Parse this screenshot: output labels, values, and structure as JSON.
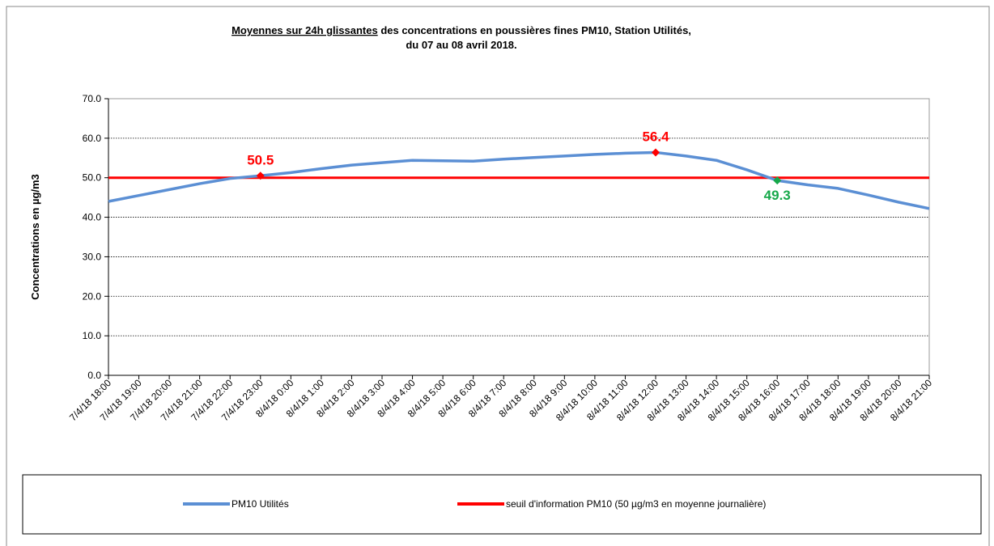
{
  "chart_data": {
    "type": "line",
    "title": {
      "underlined": "Moyennes sur 24h glissantes",
      "rest": " des concentrations en poussières fines PM10, Station Utilités,",
      "line2": "du 07 au 08 avril 2018."
    },
    "y_label": "Concentrations en µg/m3",
    "categories": [
      "7/4/18 18:00",
      "7/4/18 19:00",
      "7/4/18 20:00",
      "7/4/18 21:00",
      "7/4/18 22:00",
      "7/4/18 23:00",
      "8/4/18 0:00",
      "8/4/18 1:00",
      "8/4/18 2:00",
      "8/4/18 3:00",
      "8/4/18 4:00",
      "8/4/18 5:00",
      "8/4/18 6:00",
      "8/4/18 7:00",
      "8/4/18 8:00",
      "8/4/18 9:00",
      "8/4/18 10:00",
      "8/4/18 11:00",
      "8/4/18 12:00",
      "8/4/18 13:00",
      "8/4/18 14:00",
      "8/4/18 15:00",
      "8/4/18 16:00",
      "8/4/18 17:00",
      "8/4/18 18:00",
      "8/4/18 19:00",
      "8/4/18 20:00",
      "8/4/18 21:00"
    ],
    "series": [
      {
        "name": "PM10 Utilités",
        "color": "#5b8fd4",
        "values": [
          44.0,
          45.5,
          47.0,
          48.5,
          49.8,
          50.5,
          51.3,
          52.3,
          53.2,
          53.8,
          54.4,
          54.3,
          54.2,
          54.7,
          55.1,
          55.5,
          55.9,
          56.2,
          56.4,
          55.5,
          54.4,
          52.0,
          49.3,
          48.2,
          47.3,
          45.6,
          43.8,
          42.2
        ],
        "value_labels": [
          null,
          null,
          null,
          null,
          null,
          "50.5",
          null,
          null,
          null,
          null,
          null,
          null,
          null,
          null,
          null,
          null,
          null,
          null,
          "56.4",
          null,
          null,
          null,
          "49.3",
          null,
          null,
          null,
          null,
          null
        ],
        "value_label_colors": [
          null,
          null,
          null,
          null,
          null,
          "#ff0000",
          null,
          null,
          null,
          null,
          null,
          null,
          null,
          null,
          null,
          null,
          null,
          null,
          "#ff0000",
          null,
          null,
          null,
          "#16a84a",
          null,
          null,
          null,
          null,
          null
        ]
      },
      {
        "name": "seuil d'information PM10 (50 µg/m3 en moyenne journalière)",
        "color": "#ff0000",
        "values": [
          50,
          50,
          50,
          50,
          50,
          50,
          50,
          50,
          50,
          50,
          50,
          50,
          50,
          50,
          50,
          50,
          50,
          50,
          50,
          50,
          50,
          50,
          50,
          50,
          50,
          50,
          50,
          50
        ]
      }
    ],
    "ylim": [
      0,
      70
    ],
    "yticks": [
      {
        "value": 0,
        "label": "0.0"
      },
      {
        "value": 10,
        "label": "10.0"
      },
      {
        "value": 20,
        "label": "20.0"
      },
      {
        "value": 30,
        "label": "30.0"
      },
      {
        "value": 40,
        "label": "40.0"
      },
      {
        "value": 50,
        "label": "50.0"
      },
      {
        "value": 60,
        "label": "60.0"
      },
      {
        "value": 70,
        "label": "70.0"
      }
    ],
    "grid": true,
    "legend": "bottom"
  }
}
